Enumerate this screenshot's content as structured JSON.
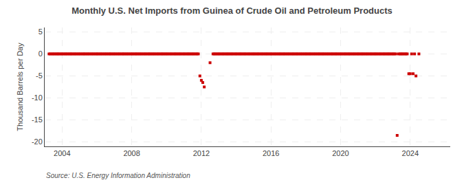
{
  "chart_data": {
    "type": "scatter",
    "title": "Monthly U.S. Net Imports from Guinea of Crude Oil and Petroleum Products",
    "ylabel": "Thousand Barrels per Day",
    "annotations": [
      "Source: U.S. Energy Information Administration"
    ],
    "color": "#cc0000",
    "marker": "square",
    "grid": true,
    "xlim": [
      2003.0,
      2026.3
    ],
    "ylim": [
      -21,
      6
    ],
    "xticks": [
      2004,
      2008,
      2012,
      2016,
      2020,
      2024
    ],
    "yticks": [
      5,
      0,
      -5,
      -10,
      -15,
      -20
    ],
    "x": [
      2003.25,
      2003.33,
      2003.42,
      2003.5,
      2003.58,
      2003.67,
      2003.75,
      2003.83,
      2003.92,
      2004.0,
      2004.08,
      2004.17,
      2004.25,
      2004.33,
      2004.42,
      2004.5,
      2004.58,
      2004.67,
      2004.75,
      2004.83,
      2004.92,
      2005.0,
      2005.08,
      2005.17,
      2005.25,
      2005.33,
      2005.42,
      2005.5,
      2005.58,
      2005.67,
      2005.75,
      2005.83,
      2005.92,
      2006.0,
      2006.08,
      2006.17,
      2006.25,
      2006.33,
      2006.42,
      2006.5,
      2006.58,
      2006.67,
      2006.75,
      2006.83,
      2006.92,
      2007.0,
      2007.08,
      2007.17,
      2007.25,
      2007.33,
      2007.42,
      2007.5,
      2007.58,
      2007.67,
      2007.75,
      2007.83,
      2007.92,
      2008.0,
      2008.08,
      2008.17,
      2008.25,
      2008.33,
      2008.42,
      2008.5,
      2008.58,
      2008.67,
      2008.75,
      2008.83,
      2008.92,
      2009.0,
      2009.08,
      2009.17,
      2009.25,
      2009.33,
      2009.42,
      2009.5,
      2009.58,
      2009.67,
      2009.75,
      2009.83,
      2009.92,
      2010.0,
      2010.08,
      2010.17,
      2010.25,
      2010.33,
      2010.42,
      2010.5,
      2010.58,
      2010.67,
      2010.75,
      2010.83,
      2010.92,
      2011.0,
      2011.08,
      2011.17,
      2011.25,
      2011.33,
      2011.42,
      2011.5,
      2011.58,
      2011.67,
      2011.75,
      2011.83,
      2011.917,
      2012.0,
      2012.083,
      2012.167,
      2012.5,
      2012.67,
      2012.75,
      2012.83,
      2012.92,
      2013.0,
      2013.08,
      2013.17,
      2013.25,
      2013.33,
      2013.42,
      2013.5,
      2013.58,
      2013.67,
      2013.75,
      2013.83,
      2013.92,
      2014.0,
      2014.08,
      2014.17,
      2014.25,
      2014.33,
      2014.42,
      2014.5,
      2014.58,
      2014.67,
      2014.75,
      2014.83,
      2014.92,
      2015.0,
      2015.08,
      2015.17,
      2015.25,
      2015.33,
      2015.42,
      2015.5,
      2015.58,
      2015.67,
      2015.75,
      2015.83,
      2015.92,
      2016.0,
      2016.08,
      2016.17,
      2016.25,
      2016.33,
      2016.42,
      2016.5,
      2016.58,
      2016.67,
      2016.75,
      2016.83,
      2016.92,
      2017.0,
      2017.08,
      2017.17,
      2017.25,
      2017.33,
      2017.42,
      2017.5,
      2017.58,
      2017.67,
      2017.75,
      2017.83,
      2017.92,
      2018.0,
      2018.08,
      2018.17,
      2018.25,
      2018.33,
      2018.42,
      2018.5,
      2018.58,
      2018.67,
      2018.75,
      2018.83,
      2018.92,
      2019.0,
      2019.08,
      2019.17,
      2019.25,
      2019.33,
      2019.42,
      2019.5,
      2019.58,
      2019.67,
      2019.75,
      2019.83,
      2019.92,
      2020.0,
      2020.08,
      2020.17,
      2020.25,
      2020.33,
      2020.42,
      2020.5,
      2020.58,
      2020.67,
      2020.75,
      2020.83,
      2020.92,
      2021.0,
      2021.08,
      2021.17,
      2021.25,
      2021.33,
      2021.42,
      2021.5,
      2021.58,
      2021.67,
      2021.75,
      2021.83,
      2021.92,
      2022.0,
      2022.08,
      2022.17,
      2022.25,
      2022.33,
      2022.42,
      2022.5,
      2022.58,
      2022.67,
      2022.75,
      2022.83,
      2022.92,
      2023.0,
      2023.08,
      2023.17,
      2023.25,
      2023.33,
      2023.42,
      2023.5,
      2023.58,
      2023.67,
      2023.75,
      2023.83,
      2023.917,
      2024.0,
      2024.083,
      2024.167,
      2024.25,
      2024.33,
      2024.5
    ],
    "values": [
      0,
      0,
      0,
      0,
      0,
      0,
      0,
      0,
      0,
      0,
      0,
      0,
      0,
      0,
      0,
      0,
      0,
      0,
      0,
      0,
      0,
      0,
      0,
      0,
      0,
      0,
      0,
      0,
      0,
      0,
      0,
      0,
      0,
      0,
      0,
      0,
      0,
      0,
      0,
      0,
      0,
      0,
      0,
      0,
      0,
      0,
      0,
      0,
      0,
      0,
      0,
      0,
      0,
      0,
      0,
      0,
      0,
      0,
      0,
      0,
      0,
      0,
      0,
      0,
      0,
      0,
      0,
      0,
      0,
      0,
      0,
      0,
      0,
      0,
      0,
      0,
      0,
      0,
      0,
      0,
      0,
      0,
      0,
      0,
      0,
      0,
      0,
      0,
      0,
      0,
      0,
      0,
      0,
      0,
      0,
      0,
      0,
      0,
      0,
      0,
      0,
      0,
      0,
      0,
      -5.0,
      -6.0,
      -6.5,
      -7.5,
      -2.0,
      0,
      0,
      0,
      0,
      0,
      0,
      0,
      0,
      0,
      0,
      0,
      0,
      0,
      0,
      0,
      0,
      0,
      0,
      0,
      0,
      0,
      0,
      0,
      0,
      0,
      0,
      0,
      0,
      0,
      0,
      0,
      0,
      0,
      0,
      0,
      0,
      0,
      0,
      0,
      0,
      0,
      0,
      0,
      0,
      0,
      0,
      0,
      0,
      0,
      0,
      0,
      0,
      0,
      0,
      0,
      0,
      0,
      0,
      0,
      0,
      0,
      0,
      0,
      0,
      0,
      0,
      0,
      0,
      0,
      0,
      0,
      0,
      0,
      0,
      0,
      0,
      0,
      0,
      0,
      0,
      0,
      0,
      0,
      0,
      0,
      0,
      0,
      0,
      0,
      0,
      0,
      0,
      0,
      0,
      0,
      0,
      0,
      0,
      0,
      0,
      0,
      0,
      0,
      0,
      0,
      0,
      0,
      0,
      0,
      0,
      0,
      0,
      0,
      0,
      0,
      0,
      0,
      0,
      0,
      0,
      0,
      0,
      0,
      0,
      0,
      0,
      0,
      -18.5,
      0,
      0,
      0,
      0,
      0,
      0,
      0,
      -4.5,
      -4.5,
      0,
      -4.5,
      0,
      -5.0,
      0
    ]
  }
}
